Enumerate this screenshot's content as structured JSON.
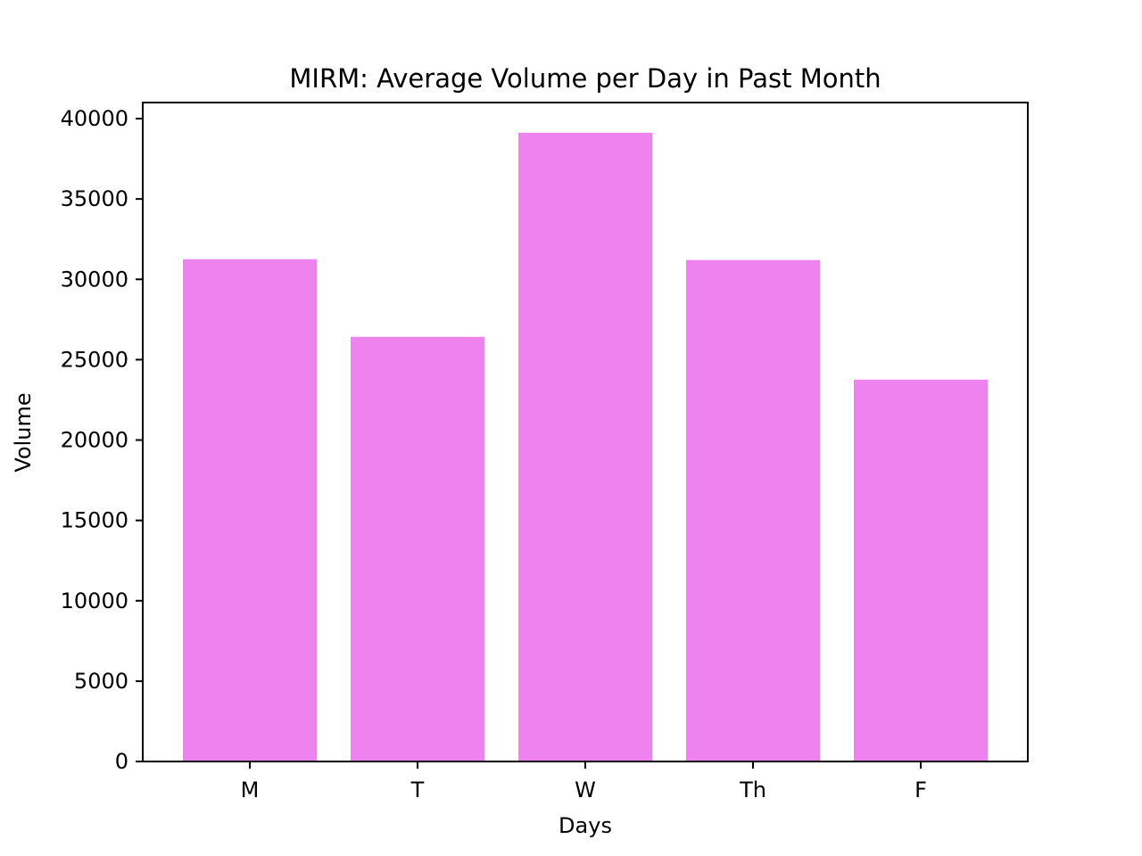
{
  "chart_data": {
    "type": "bar",
    "title": "MIRM: Average Volume per Day in Past Month",
    "xlabel": "Days",
    "ylabel": "Volume",
    "categories": [
      "M",
      "T",
      "W",
      "Th",
      "F"
    ],
    "values": [
      31250,
      26420,
      39120,
      31200,
      23760
    ],
    "ylim": [
      0,
      41000
    ],
    "yticks": [
      0,
      5000,
      10000,
      15000,
      20000,
      25000,
      30000,
      35000,
      40000
    ],
    "ytick_labels": [
      "0",
      "5000",
      "10000",
      "15000",
      "20000",
      "25000",
      "30000",
      "35000",
      "40000"
    ],
    "bar_color": "#ee82ee",
    "grid": false,
    "legend": "none"
  }
}
